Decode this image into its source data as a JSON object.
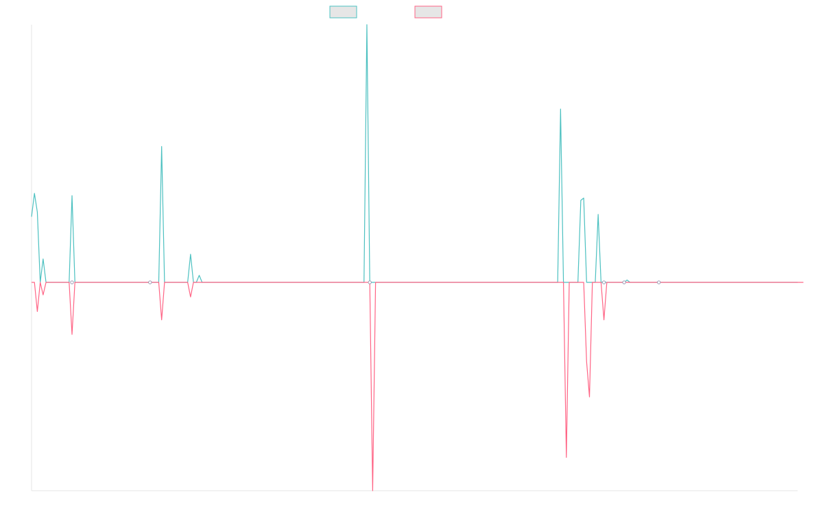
{
  "chart_data": {
    "type": "line",
    "title": "",
    "xlabel": "",
    "ylabel": "",
    "ylim": [
      -1,
      1
    ],
    "grid": false,
    "legend": "top-center",
    "series": [
      {
        "color": "#4bc0c0",
        "fill": "#e6e6e6",
        "values": [
          0.28,
          0.38,
          0.3,
          0,
          0.1,
          0,
          0,
          0,
          0,
          0,
          0,
          0,
          0,
          0,
          0.37,
          0,
          0,
          0,
          0,
          0,
          0,
          0,
          0,
          0,
          0,
          0,
          0,
          0,
          0,
          0,
          0,
          0,
          0,
          0,
          0,
          0,
          0,
          0,
          0,
          0,
          0,
          0,
          0,
          0,
          0,
          0.58,
          0,
          0,
          0,
          0,
          0,
          0,
          0,
          0,
          0,
          0.12,
          0,
          0,
          0.03,
          0,
          0,
          0,
          0,
          0,
          0,
          0,
          0,
          0,
          0,
          0,
          0,
          0,
          0,
          0,
          0,
          0,
          0,
          0,
          0,
          0,
          0,
          0,
          0,
          0,
          0,
          0,
          0,
          0,
          0,
          0,
          0,
          0,
          0,
          0,
          0,
          0,
          0,
          0,
          0,
          0,
          0,
          0,
          0,
          0,
          0,
          0,
          0,
          0,
          0,
          0,
          0,
          0,
          0,
          0,
          0,
          0,
          1.1,
          0,
          0,
          0,
          0,
          0,
          0,
          0,
          0,
          0,
          0,
          0,
          0,
          0,
          0,
          0,
          0,
          0,
          0,
          0,
          0,
          0,
          0,
          0,
          0,
          0,
          0,
          0,
          0,
          0,
          0,
          0,
          0,
          0,
          0,
          0,
          0,
          0,
          0,
          0,
          0,
          0,
          0,
          0,
          0,
          0,
          0,
          0,
          0,
          0,
          0,
          0,
          0,
          0,
          0,
          0,
          0,
          0,
          0,
          0,
          0,
          0,
          0,
          0,
          0,
          0,
          0,
          0.74,
          0,
          0,
          0,
          0,
          0,
          0,
          0.35,
          0.36,
          0,
          0,
          0,
          0,
          0.29,
          0,
          0,
          0,
          0,
          0,
          0,
          0,
          0,
          0,
          0.01,
          0,
          0,
          0,
          0,
          0,
          0,
          0,
          0,
          0,
          0,
          0,
          0,
          0,
          0,
          0,
          0,
          0,
          0,
          0,
          0,
          0,
          0,
          0,
          0,
          0,
          0,
          0,
          0,
          0,
          0,
          0,
          0,
          0,
          0,
          0,
          0,
          0,
          0,
          0,
          0,
          0,
          0,
          0,
          0,
          0,
          0,
          0,
          0,
          0,
          0,
          0,
          0,
          0,
          0,
          0,
          0,
          0,
          0,
          0
        ]
      },
      {
        "color": "#ff6384",
        "fill": "#e6e6e6",
        "values": [
          0,
          0,
          -0.14,
          0,
          -0.06,
          0,
          0,
          0,
          0,
          0,
          0,
          0,
          0,
          0,
          -0.25,
          0,
          0,
          0,
          0,
          0,
          0,
          0,
          0,
          0,
          0,
          0,
          0,
          0,
          0,
          0,
          0,
          0,
          0,
          0,
          0,
          0,
          0,
          0,
          0,
          0,
          0,
          0,
          0,
          0,
          0,
          -0.18,
          0,
          0,
          0,
          0,
          0,
          0,
          0,
          0,
          0,
          -0.07,
          0,
          0,
          0,
          0,
          0,
          0,
          0,
          0,
          0,
          0,
          0,
          0,
          0,
          0,
          0,
          0,
          0,
          0,
          0,
          0,
          0,
          0,
          0,
          0,
          0,
          0,
          0,
          0,
          0,
          0,
          0,
          0,
          0,
          0,
          0,
          0,
          0,
          0,
          0,
          0,
          0,
          0,
          0,
          0,
          0,
          0,
          0,
          0,
          0,
          0,
          0,
          0,
          0,
          0,
          0,
          0,
          0,
          0,
          0,
          0,
          0,
          0,
          -1.0,
          0,
          0,
          0,
          0,
          0,
          0,
          0,
          0,
          0,
          0,
          0,
          0,
          0,
          0,
          0,
          0,
          0,
          0,
          0,
          0,
          0,
          0,
          0,
          0,
          0,
          0,
          0,
          0,
          0,
          0,
          0,
          0,
          0,
          0,
          0,
          0,
          0,
          0,
          0,
          0,
          0,
          0,
          0,
          0,
          0,
          0,
          0,
          0,
          0,
          0,
          0,
          0,
          0,
          0,
          0,
          0,
          0,
          0,
          0,
          0,
          0,
          0,
          0,
          0,
          0,
          0,
          -0.84,
          0,
          0,
          0,
          0,
          0,
          0,
          -0.38,
          -0.55,
          0,
          0,
          0,
          0,
          -0.18,
          0,
          0,
          0,
          0,
          0,
          0,
          0,
          0,
          0,
          0,
          0,
          0,
          0,
          0,
          0,
          0,
          0,
          0,
          0,
          0,
          0,
          0,
          0,
          0,
          0,
          0,
          0,
          0,
          0,
          0,
          0,
          0,
          0,
          0,
          0,
          0,
          0,
          0,
          0,
          0,
          0,
          0,
          0,
          0,
          0,
          0,
          0,
          0,
          0,
          0,
          0,
          0,
          0,
          0,
          0,
          0,
          0,
          0,
          0,
          0,
          0,
          0,
          0,
          0,
          0,
          0,
          0,
          0,
          0
        ]
      }
    ]
  }
}
